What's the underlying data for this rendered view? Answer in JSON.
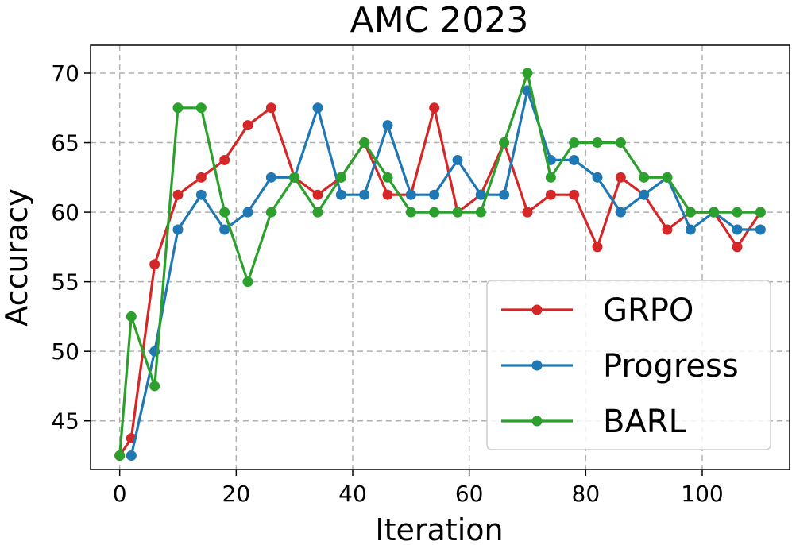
{
  "chart_data": {
    "type": "line",
    "title": "AMC 2023",
    "xlabel": "Iteration",
    "ylabel": "Accuracy",
    "xlim": [
      -5,
      115
    ],
    "ylim": [
      41.5,
      72
    ],
    "xticks": [
      0,
      20,
      40,
      60,
      80,
      100
    ],
    "yticks": [
      45,
      50,
      55,
      60,
      65,
      70
    ],
    "grid": true,
    "legend_position": "lower-right",
    "series": [
      {
        "name": "GRPO",
        "color": "#d62728",
        "x": [
          0,
          2,
          6,
          10,
          14,
          18,
          22,
          26,
          30,
          34,
          38,
          42,
          46,
          50,
          54,
          58,
          62,
          66,
          70,
          74,
          78,
          82,
          86,
          90,
          94,
          98,
          102,
          106,
          110
        ],
        "y": [
          42.5,
          43.75,
          56.25,
          61.25,
          62.5,
          63.75,
          66.25,
          67.5,
          62.5,
          61.25,
          62.5,
          65.0,
          61.25,
          61.25,
          67.5,
          60.0,
          61.25,
          65.0,
          60.0,
          61.25,
          61.25,
          57.5,
          62.5,
          61.25,
          58.75,
          60.0,
          60.0,
          57.5,
          60.0
        ]
      },
      {
        "name": "Progress",
        "color": "#1f77b4",
        "x": [
          2,
          6,
          10,
          14,
          18,
          22,
          26,
          30,
          34,
          38,
          42,
          46,
          50,
          54,
          58,
          62,
          66,
          70,
          74,
          78,
          82,
          86,
          90,
          94,
          98,
          102,
          106,
          110
        ],
        "y": [
          42.5,
          50.0,
          58.75,
          61.25,
          58.75,
          60.0,
          62.5,
          62.5,
          67.5,
          61.25,
          61.25,
          66.25,
          61.25,
          61.25,
          63.75,
          61.25,
          61.25,
          68.75,
          63.75,
          63.75,
          62.5,
          60.0,
          61.25,
          62.5,
          58.75,
          60.0,
          58.75,
          58.75
        ]
      },
      {
        "name": "BARL",
        "color": "#2ca02c",
        "x": [
          0,
          2,
          6,
          10,
          14,
          18,
          22,
          26,
          30,
          34,
          38,
          42,
          46,
          50,
          54,
          58,
          62,
          66,
          70,
          74,
          78,
          82,
          86,
          90,
          94,
          98,
          102,
          106,
          110
        ],
        "y": [
          42.5,
          52.5,
          47.5,
          67.5,
          67.5,
          60.0,
          55.0,
          60.0,
          62.5,
          60.0,
          62.5,
          65.0,
          62.5,
          60.0,
          60.0,
          60.0,
          60.0,
          65.0,
          70.0,
          62.5,
          65.0,
          65.0,
          65.0,
          62.5,
          62.5,
          60.0,
          60.0,
          60.0,
          60.0
        ]
      }
    ]
  }
}
